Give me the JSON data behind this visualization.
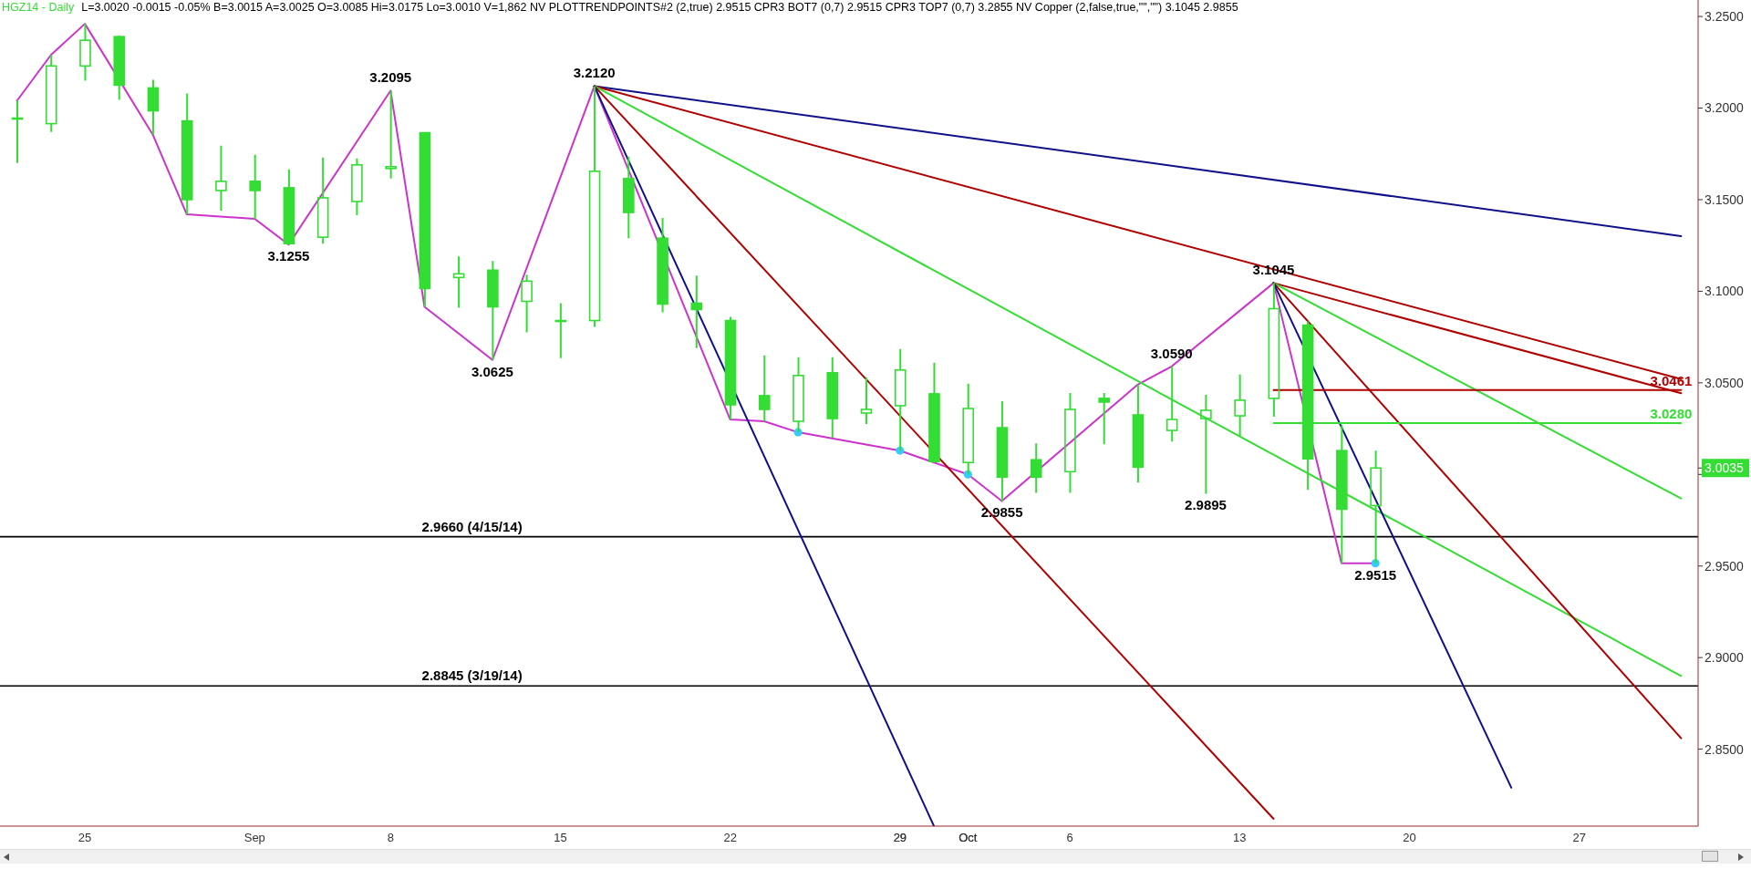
{
  "chart_data": {
    "type": "candlestick",
    "title": "HGZ14 - Daily",
    "subtitle": "L=3.0020 -0.0015 -0.05% B=3.0015 A=3.0025 O=3.0085 Hi=3.0175 Lo=3.0010 V=1,862 NV PLOTTRENDPOINTS#2 (2,true) 2.9515 CPR3 BOT7 (0,7) 2.9515 CPR3 TOP7 (0,7) 3.2855 NV Copper (2,false,true,\"\",\"\") 3.1045 2.9855",
    "categories": [
      null,
      null,
      "25",
      null,
      null,
      null,
      null,
      "Sep",
      null,
      null,
      null,
      "8",
      null,
      null,
      null,
      null,
      "15",
      null,
      null,
      null,
      null,
      "22",
      null,
      null,
      null,
      null,
      "29",
      null,
      "Oct",
      null,
      null,
      "6",
      null,
      null,
      null,
      null,
      "13",
      null,
      null,
      null,
      null,
      "20",
      null,
      null,
      null,
      null,
      "27",
      null,
      null,
      null
    ],
    "color": "#33dd33",
    "ohlc": [
      [
        3.1945,
        3.204,
        3.17,
        3.1945
      ],
      [
        3.1915,
        3.229,
        3.187,
        3.223
      ],
      [
        3.223,
        3.246,
        3.215,
        3.237
      ],
      [
        3.239,
        3.2395,
        3.2045,
        3.2125
      ],
      [
        3.211,
        3.2155,
        3.1855,
        3.1985
      ],
      [
        3.193,
        3.208,
        3.142,
        3.15
      ],
      [
        3.155,
        3.1795,
        3.144,
        3.16
      ],
      [
        3.16,
        3.1745,
        3.1395,
        3.155
      ],
      [
        3.1565,
        3.1665,
        3.1255,
        3.126
      ],
      [
        3.1295,
        3.173,
        3.126,
        3.151
      ],
      [
        3.149,
        3.1725,
        3.1415,
        3.169
      ],
      [
        3.167,
        3.2095,
        3.1615,
        3.168
      ],
      [
        3.1865,
        3.187,
        3.0915,
        3.1015
      ],
      [
        3.1075,
        3.119,
        3.091,
        3.1095
      ],
      [
        3.1115,
        3.1165,
        3.0625,
        3.0915
      ],
      [
        3.0945,
        3.109,
        3.0775,
        3.1055
      ],
      [
        3.084,
        3.0935,
        3.0635,
        3.084
      ],
      [
        3.084,
        3.212,
        3.0805,
        3.1655
      ],
      [
        3.1615,
        3.1735,
        3.129,
        3.143
      ],
      [
        3.129,
        3.14,
        3.0885,
        3.093
      ],
      [
        3.0935,
        3.1085,
        3.069,
        3.09
      ],
      [
        3.084,
        3.086,
        3.03,
        3.038
      ],
      [
        3.043,
        3.065,
        3.029,
        3.0355
      ],
      [
        3.029,
        3.064,
        3.023,
        3.054
      ],
      [
        3.0555,
        3.064,
        3.02,
        3.0305
      ],
      [
        3.0335,
        3.053,
        3.0275,
        3.0355
      ],
      [
        3.0375,
        3.0685,
        3.013,
        3.057
      ],
      [
        3.044,
        3.061,
        3.0065,
        3.007
      ],
      [
        3.0065,
        3.0495,
        3.0,
        3.036
      ],
      [
        3.0255,
        3.04,
        2.9855,
        2.9985
      ],
      [
        3.008,
        3.017,
        2.99,
        2.9985
      ],
      [
        3.0015,
        3.0445,
        2.99,
        3.0355
      ],
      [
        3.0415,
        3.0445,
        3.0165,
        3.0395
      ],
      [
        3.0325,
        3.049,
        2.9955,
        3.004
      ],
      [
        3.024,
        3.059,
        3.018,
        3.03
      ],
      [
        3.0305,
        3.0435,
        2.9895,
        3.035
      ],
      [
        3.032,
        3.0545,
        3.021,
        3.0405
      ],
      [
        3.0415,
        3.1045,
        3.0315,
        3.0905
      ],
      [
        3.0815,
        3.0835,
        2.9915,
        3.0085
      ],
      [
        3.013,
        3.027,
        2.9515,
        2.981
      ],
      [
        2.983,
        3.013,
        2.9515,
        3.0035
      ],
      null,
      null,
      null,
      null,
      null,
      null,
      null,
      null,
      null
    ],
    "series": [
      {
        "type": "line",
        "color": "#cc33cc",
        "values": [
          3.204,
          3.229,
          3.246,
          null,
          3.1855,
          3.142,
          null,
          3.1395,
          3.1255,
          null,
          null,
          3.2095,
          3.0915,
          null,
          3.0625,
          null,
          null,
          3.212,
          null,
          null,
          null,
          3.03,
          3.029,
          3.023,
          null,
          null,
          3.013,
          null,
          3.0,
          2.9855,
          null,
          null,
          null,
          3.049,
          3.059,
          null,
          null,
          3.1045,
          null,
          2.9515,
          2.9515,
          null,
          null,
          null,
          null,
          null,
          null,
          null,
          null,
          null
        ],
        "value_labels": [
          null,
          null,
          null,
          null,
          null,
          null,
          null,
          null,
          "3.1255",
          null,
          null,
          "3.2095",
          null,
          null,
          "3.0625",
          null,
          null,
          "3.2120",
          null,
          null,
          null,
          null,
          null,
          null,
          null,
          null,
          null,
          null,
          null,
          "2.9855",
          null,
          null,
          null,
          null,
          "3.0590",
          null,
          null,
          "3.1045",
          null,
          null,
          "2.9515",
          null,
          null,
          null,
          null,
          null,
          null,
          null,
          null,
          null
        ]
      },
      {
        "type": "scatter",
        "color": "#33ccff",
        "marker": "circle",
        "values": [
          null,
          null,
          null,
          null,
          null,
          null,
          null,
          null,
          null,
          null,
          null,
          null,
          null,
          null,
          null,
          null,
          null,
          null,
          null,
          null,
          null,
          null,
          null,
          3.023,
          null,
          null,
          3.013,
          null,
          3.0,
          null,
          null,
          null,
          null,
          null,
          null,
          null,
          null,
          null,
          null,
          null,
          2.9515,
          null,
          null,
          null,
          null,
          null,
          null,
          null,
          null,
          null
        ]
      },
      {
        "type": "line",
        "color": "#10108a",
        "values": [
          null,
          null,
          null,
          null,
          null,
          null,
          null,
          null,
          null,
          null,
          null,
          null,
          null,
          null,
          null,
          null,
          null,
          3.212,
          null,
          null,
          null,
          null,
          null,
          null,
          null,
          null,
          null,
          null,
          null,
          null,
          null,
          null,
          null,
          null,
          null,
          null,
          null,
          null,
          null,
          null,
          null,
          null,
          null,
          null,
          null,
          null,
          null,
          null,
          null,
          3.1301
        ]
      },
      {
        "type": "line",
        "color": "#b00000",
        "values": [
          null,
          null,
          null,
          null,
          null,
          null,
          null,
          null,
          null,
          null,
          null,
          null,
          null,
          null,
          null,
          null,
          null,
          3.212,
          null,
          null,
          null,
          null,
          null,
          null,
          null,
          null,
          null,
          null,
          null,
          null,
          null,
          null,
          null,
          null,
          null,
          null,
          null,
          null,
          null,
          null,
          null,
          null,
          null,
          null,
          null,
          null,
          null,
          null,
          null,
          3.052
        ]
      },
      {
        "type": "line",
        "color": "#33dd33",
        "values": [
          null,
          null,
          null,
          null,
          null,
          null,
          null,
          null,
          null,
          null,
          null,
          null,
          null,
          null,
          null,
          null,
          null,
          3.212,
          null,
          null,
          null,
          null,
          null,
          null,
          null,
          null,
          null,
          null,
          null,
          null,
          null,
          null,
          null,
          null,
          null,
          null,
          null,
          null,
          null,
          null,
          null,
          null,
          null,
          null,
          null,
          null,
          null,
          null,
          null,
          2.89
        ]
      },
      {
        "type": "line",
        "color": "#b00000",
        "values": [
          null,
          null,
          null,
          null,
          null,
          null,
          null,
          null,
          null,
          null,
          null,
          null,
          null,
          null,
          null,
          null,
          null,
          3.212,
          null,
          null,
          null,
          null,
          null,
          null,
          null,
          null,
          null,
          null,
          null,
          null,
          null,
          null,
          null,
          null,
          null,
          null,
          null,
          2.812,
          null,
          null,
          null,
          null,
          null,
          null,
          null,
          null,
          null,
          null,
          null,
          null
        ]
      },
      {
        "type": "line",
        "color": "#10108a",
        "values": [
          null,
          null,
          null,
          null,
          null,
          null,
          null,
          null,
          null,
          null,
          null,
          null,
          null,
          null,
          null,
          null,
          null,
          3.212,
          null,
          null,
          null,
          null,
          null,
          null,
          null,
          null,
          null,
          2.808,
          null,
          null,
          null,
          null,
          null,
          null,
          null,
          null,
          null,
          null,
          null,
          null,
          null,
          null,
          null,
          null,
          null,
          null,
          null,
          null,
          null,
          null
        ]
      },
      {
        "type": "line",
        "color": "#b00000",
        "values": [
          null,
          null,
          null,
          null,
          null,
          null,
          null,
          null,
          null,
          null,
          null,
          null,
          null,
          null,
          null,
          null,
          null,
          null,
          null,
          null,
          null,
          null,
          null,
          null,
          null,
          null,
          null,
          null,
          null,
          null,
          null,
          null,
          null,
          null,
          null,
          null,
          null,
          3.1045,
          null,
          null,
          null,
          null,
          null,
          null,
          null,
          null,
          null,
          null,
          null,
          3.0443
        ]
      },
      {
        "type": "line",
        "color": "#33dd33",
        "values": [
          null,
          null,
          null,
          null,
          null,
          null,
          null,
          null,
          null,
          null,
          null,
          null,
          null,
          null,
          null,
          null,
          null,
          null,
          null,
          null,
          null,
          null,
          null,
          null,
          null,
          null,
          null,
          null,
          null,
          null,
          null,
          null,
          null,
          null,
          null,
          null,
          null,
          3.1045,
          null,
          null,
          null,
          null,
          null,
          null,
          null,
          null,
          null,
          null,
          null,
          2.9869
        ]
      },
      {
        "type": "line",
        "color": "#b00000",
        "values": [
          null,
          null,
          null,
          null,
          null,
          null,
          null,
          null,
          null,
          null,
          null,
          null,
          null,
          null,
          null,
          null,
          null,
          null,
          null,
          null,
          null,
          null,
          null,
          null,
          null,
          null,
          null,
          null,
          null,
          null,
          null,
          null,
          null,
          null,
          null,
          null,
          null,
          3.1045,
          null,
          null,
          null,
          null,
          null,
          null,
          null,
          null,
          null,
          null,
          null,
          2.856
        ]
      },
      {
        "type": "line",
        "color": "#10108a",
        "values": [
          null,
          null,
          null,
          null,
          null,
          null,
          null,
          null,
          null,
          null,
          null,
          null,
          null,
          null,
          null,
          null,
          null,
          null,
          null,
          null,
          null,
          null,
          null,
          null,
          null,
          null,
          null,
          null,
          null,
          null,
          null,
          null,
          null,
          null,
          null,
          null,
          null,
          3.1045,
          null,
          null,
          null,
          null,
          null,
          null,
          2.829,
          null,
          null,
          null,
          null,
          null
        ]
      },
      {
        "type": "line",
        "color": "#b00000",
        "values": [
          null,
          null,
          null,
          null,
          null,
          null,
          null,
          null,
          null,
          null,
          null,
          null,
          null,
          null,
          null,
          null,
          null,
          null,
          null,
          null,
          null,
          null,
          null,
          null,
          null,
          null,
          null,
          null,
          null,
          null,
          null,
          null,
          null,
          null,
          null,
          null,
          null,
          3.0461,
          null,
          null,
          null,
          null,
          null,
          null,
          null,
          null,
          null,
          null,
          null,
          3.0461
        ],
        "value_labels": [
          null,
          null,
          null,
          null,
          null,
          null,
          null,
          null,
          null,
          null,
          null,
          null,
          null,
          null,
          null,
          null,
          null,
          null,
          null,
          null,
          null,
          null,
          null,
          null,
          null,
          null,
          null,
          null,
          null,
          null,
          null,
          null,
          null,
          null,
          null,
          null,
          null,
          null,
          null,
          null,
          null,
          null,
          null,
          null,
          null,
          null,
          null,
          null,
          null,
          "3.0461"
        ]
      },
      {
        "type": "line",
        "color": "#33dd33",
        "values": [
          null,
          null,
          null,
          null,
          null,
          null,
          null,
          null,
          null,
          null,
          null,
          null,
          null,
          null,
          null,
          null,
          null,
          null,
          null,
          null,
          null,
          null,
          null,
          null,
          null,
          null,
          null,
          null,
          null,
          null,
          null,
          null,
          null,
          null,
          null,
          null,
          null,
          3.028,
          null,
          null,
          null,
          null,
          null,
          null,
          null,
          null,
          null,
          null,
          null,
          3.028
        ],
        "value_labels": [
          null,
          null,
          null,
          null,
          null,
          null,
          null,
          null,
          null,
          null,
          null,
          null,
          null,
          null,
          null,
          null,
          null,
          null,
          null,
          null,
          null,
          null,
          null,
          null,
          null,
          null,
          null,
          null,
          null,
          null,
          null,
          null,
          null,
          null,
          null,
          null,
          null,
          null,
          null,
          null,
          null,
          null,
          null,
          null,
          null,
          null,
          null,
          null,
          null,
          "3.0280"
        ]
      }
    ],
    "ylim": [
      2.808,
      3.259
    ],
    "yticks": [
      {
        "value": 2.85,
        "label": "2.8500"
      },
      {
        "value": 2.9,
        "label": "2.9000"
      },
      {
        "value": 2.95,
        "label": "2.9500"
      },
      {
        "value": 3.0,
        "label": null
      },
      {
        "value": 3.0035,
        "label": "3.0035"
      },
      {
        "value": 3.05,
        "label": "3.0500"
      },
      {
        "value": 3.1,
        "label": "3.1000"
      },
      {
        "value": 3.15,
        "label": "3.1500"
      },
      {
        "value": 3.2,
        "label": "3.2000"
      },
      {
        "value": 3.25,
        "label": "3.2500"
      }
    ],
    "ref_lines": [
      {
        "axis": "y",
        "value": 2.966,
        "label": "2.9660 (4/15/14)",
        "color": "#000000"
      },
      {
        "axis": "y",
        "value": 2.8845,
        "label": "2.8845 (3/19/14)",
        "color": "#000000"
      }
    ],
    "annotations": [
      {
        "text": "2.9895",
        "y": 2.9895
      }
    ]
  }
}
